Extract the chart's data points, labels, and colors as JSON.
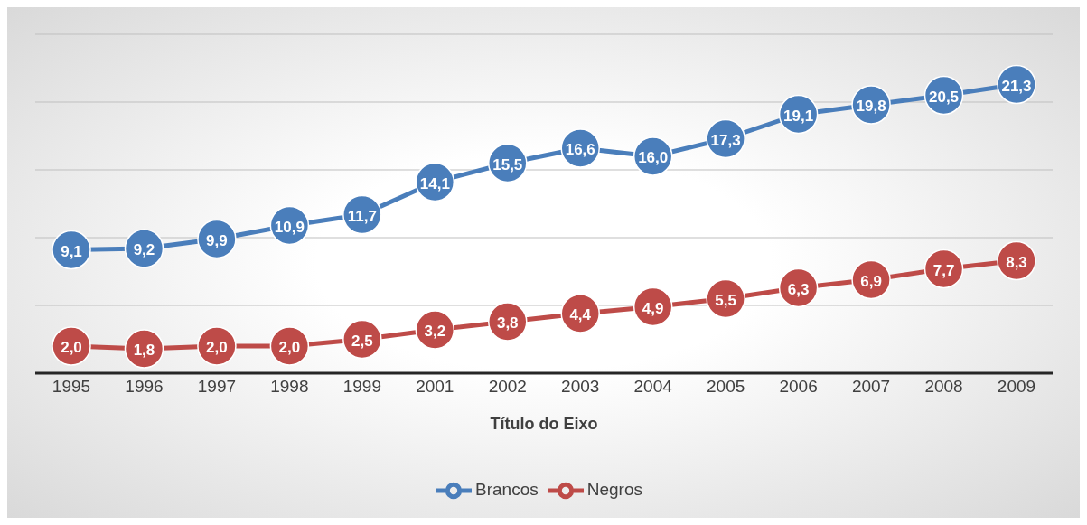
{
  "chart_data": {
    "type": "line",
    "xlabel": "Título do Eixo",
    "categories": [
      "1995",
      "1996",
      "1997",
      "1998",
      "1999",
      "2001",
      "2002",
      "2003",
      "2004",
      "2005",
      "2006",
      "2007",
      "2008",
      "2009"
    ],
    "series": [
      {
        "name": "Brancos",
        "color": "#4a7ebb",
        "values": [
          9.1,
          9.2,
          9.9,
          10.9,
          11.7,
          14.1,
          15.5,
          16.6,
          16.0,
          17.3,
          19.1,
          19.8,
          20.5,
          21.3
        ],
        "value_labels": [
          "9,1",
          "9,2",
          "9,9",
          "10,9",
          "11,7",
          "14,1",
          "15,5",
          "16,6",
          "16,0",
          "17,3",
          "19,1",
          "19,8",
          "20,5",
          "21,3"
        ]
      },
      {
        "name": "Negros",
        "color": "#be4b48",
        "values": [
          2.0,
          1.8,
          2.0,
          2.0,
          2.5,
          3.2,
          3.8,
          4.4,
          4.9,
          5.5,
          6.3,
          6.9,
          7.7,
          8.3
        ],
        "value_labels": [
          "2,0",
          "1,8",
          "2,0",
          "2,0",
          "2,5",
          "3,2",
          "3,8",
          "4,4",
          "4,9",
          "5,5",
          "6,3",
          "6,9",
          "7,7",
          "8,3"
        ]
      }
    ],
    "ylim": [
      0,
      25
    ],
    "tick_labels": "x",
    "grid": "y",
    "legend": "bottom",
    "marker": "circle",
    "line_style": "solid"
  }
}
